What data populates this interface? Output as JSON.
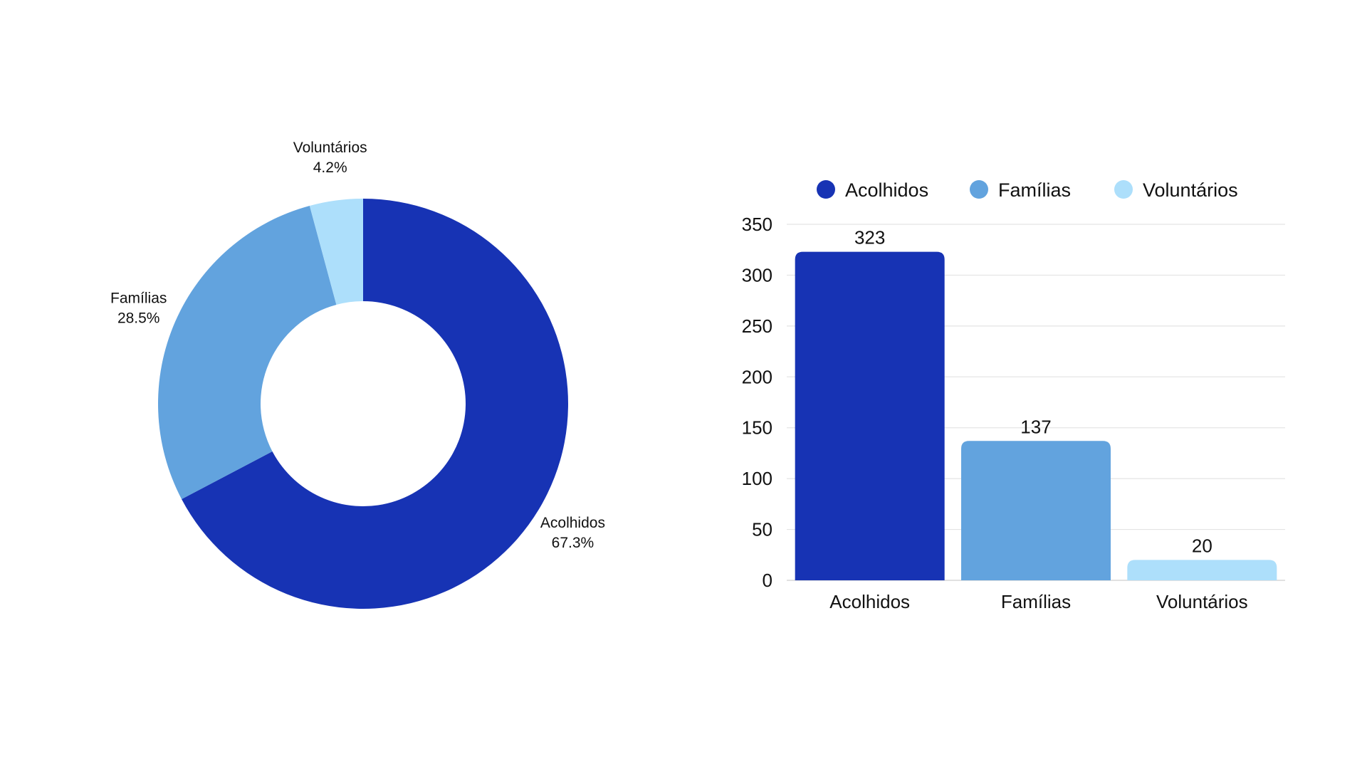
{
  "chart_data": [
    {
      "type": "pie",
      "donut": true,
      "slices": [
        {
          "label": "Acolhidos",
          "value": 67.3,
          "value_label": "67.3%",
          "color": "#1733b4"
        },
        {
          "label": "Famílias",
          "value": 28.5,
          "value_label": "28.5%",
          "color": "#62a3de"
        },
        {
          "label": "Voluntários",
          "value": 4.2,
          "value_label": "4.2%",
          "color": "#addffb"
        }
      ],
      "legend": "none"
    },
    {
      "type": "bar",
      "categories": [
        "Acolhidos",
        "Famílias",
        "Voluntários"
      ],
      "values": [
        323,
        137,
        20
      ],
      "data_labels": [
        "323",
        "137",
        "20"
      ],
      "colors": [
        "#1733b4",
        "#62a3de",
        "#addffb"
      ],
      "legend": "top",
      "legend_entries": [
        "Acolhidos",
        "Famílias",
        "Voluntários"
      ],
      "ylim": [
        0,
        350
      ],
      "yticks": [
        0,
        50,
        100,
        150,
        200,
        250,
        300,
        350
      ],
      "grid": true
    }
  ]
}
